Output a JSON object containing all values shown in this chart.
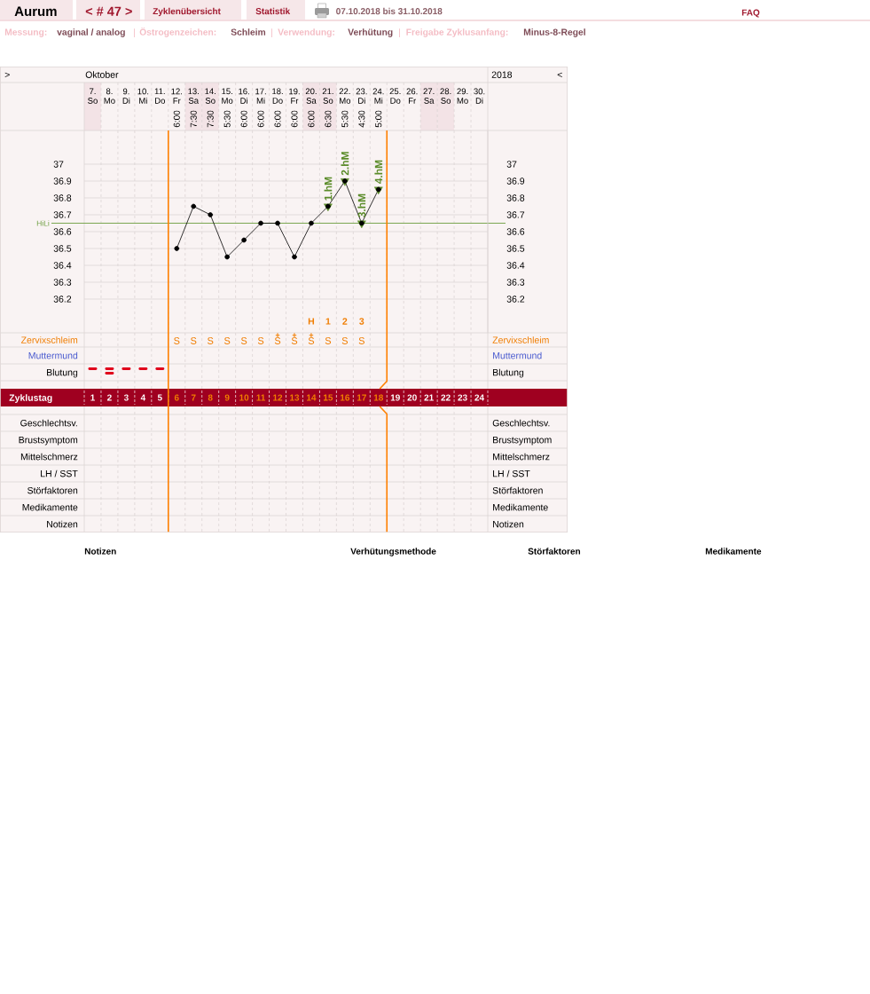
{
  "chart_data": {
    "type": "line",
    "categories": [
      "7. So",
      "8. Mo",
      "9. Di",
      "10. Mi",
      "11. Do",
      "12. Fr",
      "13. Sa",
      "14. So",
      "15. Mo",
      "16. Di",
      "17. Mi",
      "18. Do",
      "19. Fr",
      "20. Sa",
      "21. So",
      "22. Mo",
      "23. Di",
      "24. Mi",
      "25. Do",
      "26. Fr",
      "27. Sa",
      "28. So",
      "29. Mo",
      "30. Di"
    ],
    "series": [
      {
        "type": "line",
        "color": "#000000",
        "marker": "circle",
        "values": [
          null,
          null,
          null,
          null,
          null,
          36.5,
          36.75,
          36.7,
          36.45,
          36.55,
          36.65,
          36.65,
          36.45,
          36.65,
          36.75,
          36.9,
          36.65,
          36.85,
          null,
          null,
          null,
          null,
          null,
          null
        ]
      },
      {
        "type": "scatter",
        "color": "#5b8c2a",
        "marker": "triangle",
        "values": [
          null,
          null,
          null,
          null,
          null,
          null,
          null,
          null,
          null,
          null,
          null,
          null,
          null,
          null,
          36.75,
          36.9,
          36.65,
          36.85,
          null,
          null,
          null,
          null,
          null,
          null
        ]
      }
    ],
    "line_style": "solid",
    "grid": true,
    "ylim": [
      36.0,
      37.2
    ],
    "yticks": [
      36.2,
      36.3,
      36.4,
      36.5,
      36.6,
      36.7,
      36.8,
      36.9,
      37
    ],
    "y2lim": [
      36.0,
      37.2
    ],
    "y2ticks": [
      36.2,
      36.3,
      36.4,
      36.5,
      36.6,
      36.7,
      36.8,
      36.9,
      37
    ],
    "ref_lines": [
      {
        "axis": "y",
        "value": 36.65,
        "label": "HiLi",
        "color": "#6d9e3f"
      },
      {
        "axis": "x",
        "value": "11. Do",
        "color": "#ff8000"
      },
      {
        "axis": "x",
        "value": "24. Mi",
        "color": "#ff8000"
      }
    ],
    "annotations": [
      "Aurum",
      "< # 47 >",
      "Zyklenübersicht",
      "Statistik",
      "07.10.2018 bis 31.10.2018",
      "FAQ",
      "Messung:",
      "vaginal / analog",
      "|",
      "Östrogenzeichen:",
      "Schleim",
      "|",
      "Verwendung:",
      "Verhütung",
      "|",
      "Freigabe Zyklusanfang:",
      "Minus-8-Regel",
      ">",
      "Oktober",
      "2018",
      "<",
      "Zervixschleim",
      "Muttermund",
      "Blutung",
      "Geschlechtsv.",
      "Brustsymptom",
      "Mittelschmerz",
      "LH / SST",
      "Störfaktoren",
      "Medikamente",
      "Notizen",
      "Notizen",
      "Verhütungsmethode",
      "Störfaktoren",
      "Medikamente",
      "6:00",
      "7:30",
      "7:30",
      "5:30",
      "6:00",
      "6:00",
      "6:00",
      "6:00",
      "6:00",
      "6:30",
      "5:30",
      "4:30",
      "5:00",
      "S",
      "S",
      "S",
      "S",
      "S",
      "S",
      "S",
      "S",
      "S",
      "S",
      "S",
      "S",
      "+",
      "+",
      "+",
      "H",
      "1",
      "2",
      "3",
      "Zyklustag",
      "1",
      "2",
      "3",
      "4",
      "5",
      "6",
      "7",
      "8",
      "9",
      "10",
      "11",
      "12",
      "13",
      "14",
      "15",
      "16",
      "17",
      "18",
      "19",
      "20",
      "21",
      "22",
      "23",
      "24",
      {
        "text": "1.hM",
        "x": "21. So",
        "y": 36.75
      },
      {
        "text": "2.hM",
        "x": "22. Mo",
        "y": 36.9
      },
      {
        "text": "3.hM",
        "x": "23. Di",
        "y": 36.65
      },
      {
        "text": "4.hM",
        "x": "24. Mi",
        "y": 36.85
      }
    ]
  }
}
